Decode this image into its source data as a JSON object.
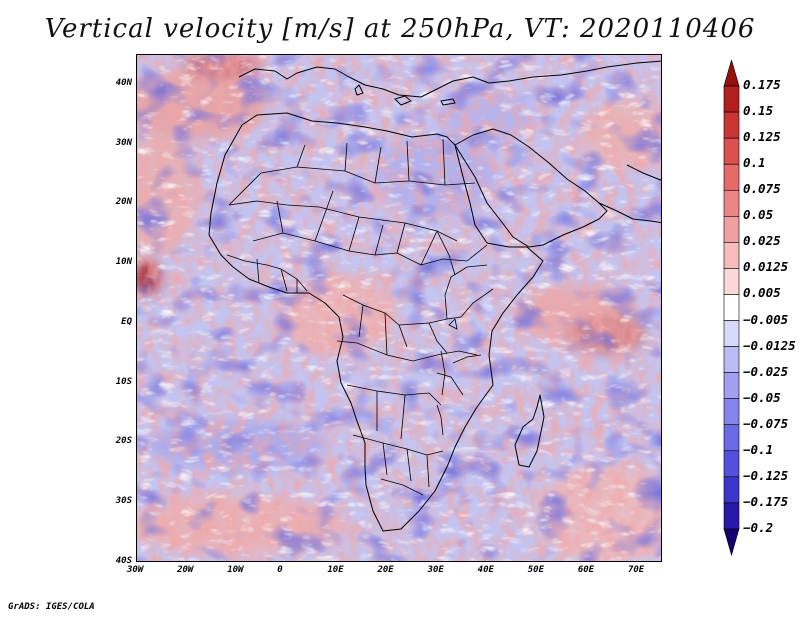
{
  "title": "Vertical velocity [m/s] at 250hPa, VT: 2020110406",
  "credit": "GrADS: IGES/COLA",
  "map": {
    "lon_range": [
      -30,
      75
    ],
    "lat_range": [
      -40,
      45
    ],
    "lat_ticks": [
      {
        "value": 40,
        "label": "40N"
      },
      {
        "value": 30,
        "label": "30N"
      },
      {
        "value": 20,
        "label": "20N"
      },
      {
        "value": 10,
        "label": "10N"
      },
      {
        "value": 0,
        "label": "EQ"
      },
      {
        "value": -10,
        "label": "10S"
      },
      {
        "value": -20,
        "label": "20S"
      },
      {
        "value": -30,
        "label": "30S"
      },
      {
        "value": -40,
        "label": "40S"
      }
    ],
    "lon_ticks": [
      {
        "value": -30,
        "label": "30W"
      },
      {
        "value": -20,
        "label": "20W"
      },
      {
        "value": -10,
        "label": "10W"
      },
      {
        "value": 0,
        "label": "0"
      },
      {
        "value": 10,
        "label": "10E"
      },
      {
        "value": 20,
        "label": "20E"
      },
      {
        "value": 30,
        "label": "30E"
      },
      {
        "value": 40,
        "label": "40E"
      },
      {
        "value": 50,
        "label": "50E"
      },
      {
        "value": 60,
        "label": "60E"
      },
      {
        "value": 70,
        "label": "70E"
      }
    ]
  },
  "colorbar": {
    "colors": [
      "#140070",
      "#2a18a8",
      "#3c35cc",
      "#5250dc",
      "#6a6ae6",
      "#8584ec",
      "#a09ff0",
      "#bcbcf4",
      "#d8d8fa",
      "#ffffff",
      "#fad8d8",
      "#f5bcbc",
      "#f0a0a0",
      "#ec8585",
      "#e66a6a",
      "#dc5050",
      "#cc3535",
      "#b31e1e",
      "#961010"
    ],
    "labels": [
      "0.175",
      "0.15",
      "0.125",
      "0.1",
      "0.075",
      "0.05",
      "0.025",
      "0.0125",
      "0.005",
      "−0.005",
      "−0.0125",
      "−0.025",
      "−0.05",
      "−0.075",
      "−0.1",
      "−0.125",
      "−0.175",
      "−0.2"
    ]
  }
}
